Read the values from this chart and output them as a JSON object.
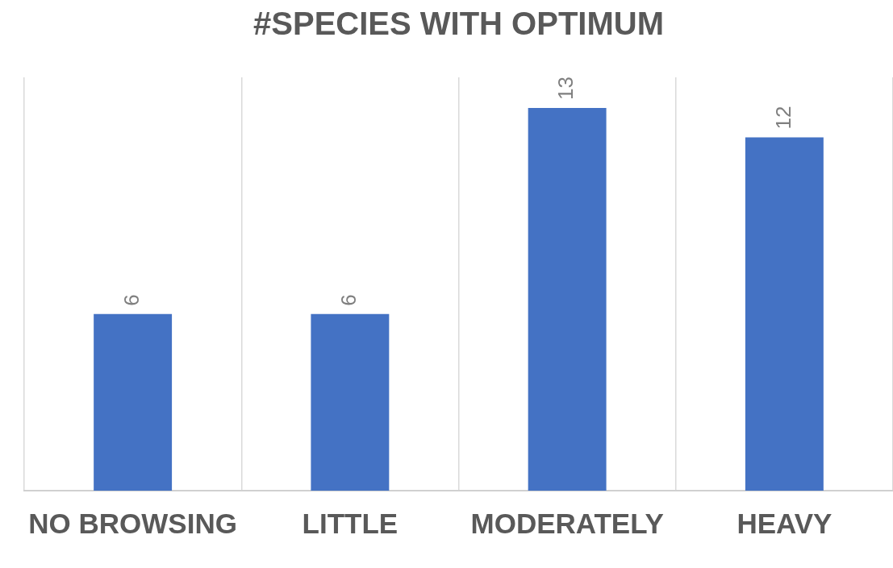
{
  "chart_data": {
    "type": "bar",
    "title": "#SPECIES WITH OPTIMUM",
    "categories": [
      "NO BROWSING",
      "LITTLE",
      "MODERATELY",
      "HEAVY"
    ],
    "values": [
      6,
      6,
      13,
      12
    ],
    "color": "#4472c4",
    "data_labels": true,
    "grid": "x",
    "legend": false
  }
}
